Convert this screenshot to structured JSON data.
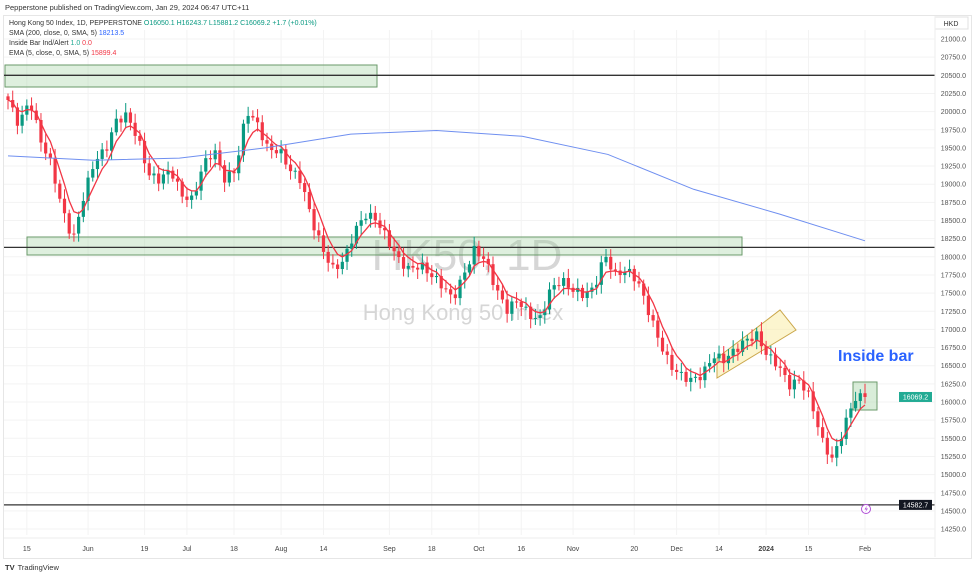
{
  "header": {
    "published": "Pepperstone published on TradingView.com, Jan 29, 2024 06:47 UTC+11"
  },
  "legend": {
    "symbol": "Hong Kong 50 Index, 1D, PEPPERSTONE",
    "open": "O16050.1",
    "high": "H16243.7",
    "low": "L15881.2",
    "close": "C16069.2",
    "change": "+1.7 (+0.01%)",
    "sma": "SMA (200, close, 0, SMA, 5)",
    "sma_val": "18213.5",
    "ib": "Inside Bar Ind/Alert",
    "ib_v1": "1.0",
    "ib_v2": "0.0",
    "ema": "EMA (5, close, 0, SMA, 5)",
    "ema_val": "15899.4"
  },
  "footer": {
    "brand": "TradingView"
  },
  "chart_data": {
    "type": "candlestick",
    "title": "HK50, 1D",
    "subtitle": "Hong Kong 50 Index",
    "currency": "HKD",
    "ylim": [
      14100,
      21250
    ],
    "yticks": [
      "21000.0",
      "20750.0",
      "20500.0",
      "20250.0",
      "20000.0",
      "19750.0",
      "19500.0",
      "19250.0",
      "19000.0",
      "18750.0",
      "18500.0",
      "18250.0",
      "18000.0",
      "17750.0",
      "17500.0",
      "17250.0",
      "17000.0",
      "16750.0",
      "16500.0",
      "16250.0",
      "16000.0",
      "15750.0",
      "15500.0",
      "15250.0",
      "15000.0",
      "14750.0",
      "14500.0",
      "14250.0"
    ],
    "xticks": [
      {
        "label": "15",
        "bar": 4
      },
      {
        "label": "Jun",
        "bar": 17
      },
      {
        "label": "19",
        "bar": 29
      },
      {
        "label": "Jul",
        "bar": 38
      },
      {
        "label": "18",
        "bar": 48
      },
      {
        "label": "Aug",
        "bar": 58
      },
      {
        "label": "14",
        "bar": 67
      },
      {
        "label": "Sep",
        "bar": 81
      },
      {
        "label": "18",
        "bar": 90
      },
      {
        "label": "Oct",
        "bar": 100
      },
      {
        "label": "16",
        "bar": 109
      },
      {
        "label": "Nov",
        "bar": 120
      },
      {
        "label": "20",
        "bar": 133
      },
      {
        "label": "Dec",
        "bar": 142
      },
      {
        "label": "14",
        "bar": 151
      },
      {
        "label": "2024",
        "bar": 161,
        "bold": true
      },
      {
        "label": "15",
        "bar": 170
      },
      {
        "label": "Feb",
        "bar": 182
      }
    ],
    "closes_keypoints": [
      20160,
      19820,
      20160,
      19610,
      19270,
      18650,
      18230,
      18850,
      19330,
      19470,
      19880,
      19950,
      19610,
      19130,
      19060,
      19200,
      18850,
      18780,
      19270,
      19470,
      19060,
      19200,
      20020,
      19820,
      19470,
      19470,
      19200,
      19060,
      18510,
      18100,
      17820,
      17960,
      18370,
      18580,
      18510,
      18230,
      17960,
      17820,
      17890,
      17750,
      17610,
      17410,
      17750,
      18100,
      17960,
      17550,
      17270,
      17410,
      17200,
      17130,
      17550,
      17680,
      17550,
      17480,
      17550,
      18030,
      17750,
      17820,
      17680,
      17270,
      16850,
      16510,
      16370,
      16300,
      16370,
      16640,
      16580,
      16710,
      16850,
      16920,
      16640,
      16510,
      16230,
      16300,
      16030,
      15480,
      15200,
      15620,
      16050,
      16069.2
    ],
    "sma200_keypoints": [
      19390,
      19330,
      19360,
      19500,
      19690,
      19740,
      19660,
      19410,
      18930,
      18590,
      18220
    ],
    "levels": [
      {
        "value": 20500
      },
      {
        "value": 18130
      },
      {
        "value": 14582.7,
        "label": "14582.7"
      }
    ],
    "last_price": "16069.2",
    "annotation": "Inside bar",
    "colors": {
      "up": "#089981",
      "down": "#f23645",
      "sma": "#6f8ff0",
      "ema": "#f23645",
      "annot": "#2962ff"
    }
  }
}
